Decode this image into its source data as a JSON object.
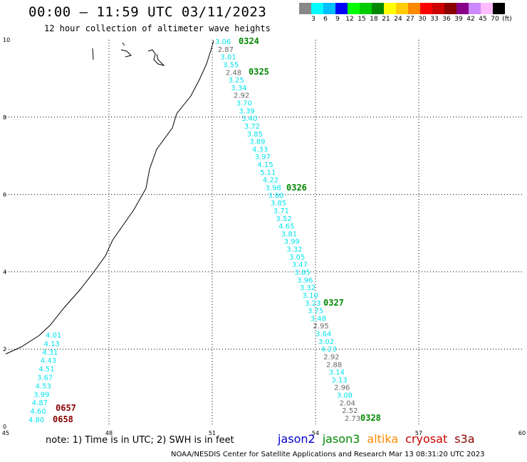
{
  "title": "00:00 – 11:59 UTC 03/11/2023",
  "subtitle": "12 hour collection of altimeter wave heights",
  "colorbar": {
    "colors": [
      "#888888",
      "#00ffff",
      "#00bfff",
      "#0000ff",
      "#00ff00",
      "#00cc00",
      "#008800",
      "#ffff00",
      "#ffcc00",
      "#ff8800",
      "#ff0000",
      "#cc0000",
      "#880000",
      "#880088",
      "#cc88ff",
      "#ffbbff",
      "#000000"
    ],
    "labels": [
      "3",
      "6",
      "9",
      "12",
      "15",
      "18",
      "21",
      "24",
      "27",
      "30",
      "33",
      "36",
      "39",
      "42",
      "45",
      "70",
      "(ft)"
    ]
  },
  "axes": {
    "x_ticks": [
      "45",
      "48",
      "51",
      "54",
      "57",
      "60"
    ],
    "y_ticks": [
      "0",
      "2",
      "4",
      "6",
      "8",
      "10"
    ]
  },
  "passes": [
    {
      "label": "0324",
      "color": "#008800"
    },
    {
      "label": "0325",
      "color": "#008800"
    },
    {
      "label": "0326",
      "color": "#008800"
    },
    {
      "label": "0327",
      "color": "#008800"
    },
    {
      "label": "0328",
      "color": "#008800"
    },
    {
      "label": "0657",
      "color": "#880000"
    },
    {
      "label": "0658",
      "color": "#880000"
    }
  ],
  "track_main": {
    "values": [
      "3.06",
      "2.87",
      "3.01",
      "3.55",
      "2.48",
      "3.25",
      "3.34",
      "2.92",
      "3.70",
      "3.39",
      "3.40",
      "3.72",
      "3.85",
      "3.89",
      "4.33",
      "3.97",
      "4.15",
      "5.11",
      "4.22",
      "3.98",
      "3.80",
      "3.85",
      "3.71",
      "3.52",
      "4.65",
      "3.81",
      "3.99",
      "3.32",
      "3.05",
      "3.47",
      "3.85",
      "3.96",
      "3.32",
      "3.10",
      "3.23",
      "3.75",
      "3.48",
      "2.95",
      "3.64",
      "3.02",
      "4.23",
      "2.92",
      "2.88",
      "3.14",
      "3.13",
      "2.96",
      "3.08",
      "2.04",
      "2.52",
      "2.73"
    ],
    "colors": [
      "c",
      "g",
      "c",
      "c",
      "g",
      "c",
      "c",
      "g",
      "c",
      "c",
      "c",
      "c",
      "c",
      "c",
      "c",
      "c",
      "c",
      "c",
      "c",
      "c",
      "c",
      "c",
      "c",
      "c",
      "c",
      "c",
      "c",
      "c",
      "c",
      "c",
      "c",
      "c",
      "c",
      "c",
      "c",
      "c",
      "c",
      "g",
      "c",
      "c",
      "c",
      "g",
      "g",
      "c",
      "c",
      "g",
      "c",
      "g",
      "g",
      "g"
    ]
  },
  "track_west": {
    "values": [
      "4.01",
      "4.13",
      "4.31",
      "4.43",
      "4.51",
      "3.67",
      "4.53",
      "3.99",
      "4.87",
      "4.60",
      "4.80"
    ]
  },
  "note": "note: 1) Time is in UTC; 2) SWH is in feet",
  "satellites": [
    {
      "name": "jason2",
      "color": "#0000cc"
    },
    {
      "name": "jason3",
      "color": "#008800"
    },
    {
      "name": "altika",
      "color": "#ff8800"
    },
    {
      "name": "cryosat",
      "color": "#cc0000"
    },
    {
      "name": "s3a",
      "color": "#880000"
    }
  ],
  "footer": "NOAA/NESDIS Center for Satellite Applications and Research   Mar 13 08:31:20 UTC 2023"
}
